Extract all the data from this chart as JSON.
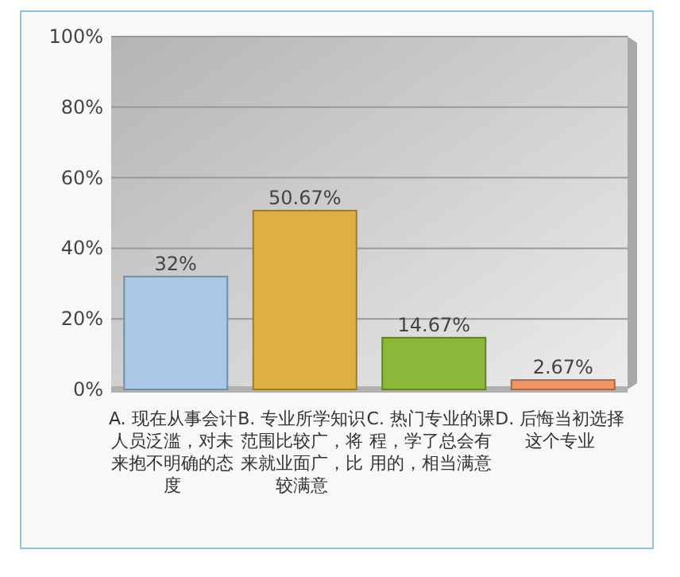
{
  "chart_data": {
    "type": "bar",
    "categories": [
      "A. 现在从事会计人员泛滥，对未来抱不明确的态度",
      "B. 专业所学知识范围比较广，将来就业面广，比较满意",
      "C. 热门专业的课程，学了总会有用的，相当满意",
      "D. 后悔当初选择这个专业"
    ],
    "values": [
      32,
      50.67,
      14.67,
      2.67
    ],
    "colors": [
      "#a8c8e6",
      "#deb044",
      "#8cb83a",
      "#ee9666"
    ],
    "value_labels": [
      "32%",
      "50.67%",
      "14.67%",
      "2.67%"
    ],
    "ylim": [
      0,
      100
    ],
    "yticks": [
      {
        "value": 0,
        "label": "0%"
      },
      {
        "value": 20,
        "label": "20%"
      },
      {
        "value": 40,
        "label": "40%"
      },
      {
        "value": 60,
        "label": "60%"
      },
      {
        "value": 80,
        "label": "80%"
      },
      {
        "value": 100,
        "label": "100%"
      }
    ],
    "grid": "y"
  }
}
